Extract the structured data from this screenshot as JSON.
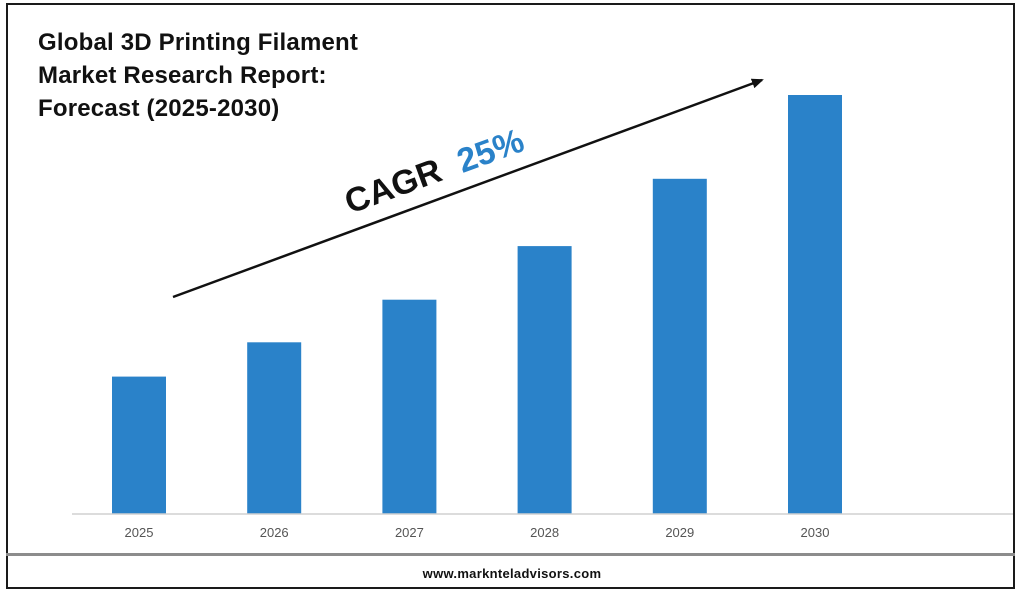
{
  "title_lines": [
    "Global 3D Printing Filament",
    "Market Research Report:",
    "Forecast (2025-2030)"
  ],
  "annotation": {
    "label": "CAGR",
    "value": "25%",
    "label_color": "#111111",
    "value_color": "#2a82c9"
  },
  "footer": {
    "url": "www.marknteladvisors.com"
  },
  "chart_data": {
    "type": "bar",
    "categories": [
      "2025",
      "2026",
      "2027",
      "2028",
      "2029",
      "2030"
    ],
    "values": [
      1.0,
      1.25,
      1.56,
      1.95,
      2.44,
      3.05
    ],
    "title": "Global 3D Printing Filament Market Research Report: Forecast (2025-2030)",
    "xlabel": "",
    "ylabel": "",
    "ylim": [
      0,
      3.05
    ],
    "grid": false,
    "bar_color": "#2a82c9",
    "trend_arrow": true
  }
}
